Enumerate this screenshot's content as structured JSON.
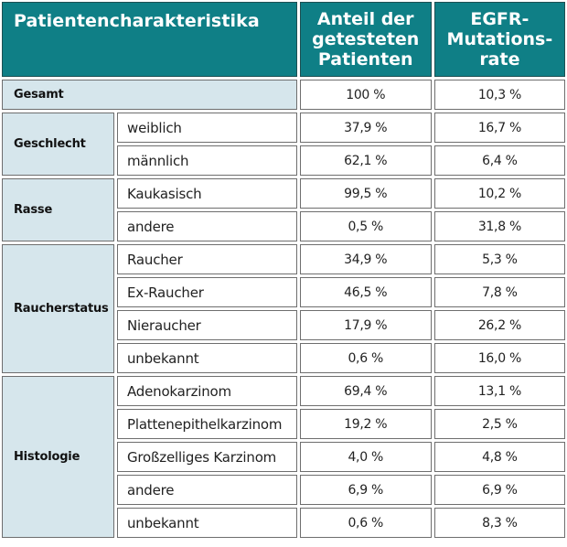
{
  "header": {
    "characteristic": "Patientencharakteristika",
    "share_tested": [
      "Anteil der",
      "getesteten",
      "Patienten"
    ],
    "egfr_rate": [
      "EGFR-",
      "Mutations-",
      "rate"
    ]
  },
  "total": {
    "label": "Gesamt",
    "share": "100 %",
    "rate": "10,3 %"
  },
  "groups": [
    {
      "label": "Geschlecht",
      "rows": [
        {
          "label": "weiblich",
          "share": "37,9 %",
          "rate": "16,7 %"
        },
        {
          "label": "männlich",
          "share": "62,1 %",
          "rate": "6,4 %"
        }
      ]
    },
    {
      "label": "Rasse",
      "rows": [
        {
          "label": "Kaukasisch",
          "share": "99,5 %",
          "rate": "10,2 %"
        },
        {
          "label": "andere",
          "share": "0,5 %",
          "rate": "31,8 %"
        }
      ]
    },
    {
      "label": "Raucherstatus",
      "rows": [
        {
          "label": "Raucher",
          "share": "34,9 %",
          "rate": "5,3 %"
        },
        {
          "label": "Ex-Raucher",
          "share": "46,5 %",
          "rate": "7,8 %"
        },
        {
          "label": "Nieraucher",
          "share": "17,9 %",
          "rate": "26,2 %"
        },
        {
          "label": "unbekannt",
          "share": "0,6 %",
          "rate": "16,0 %"
        }
      ]
    },
    {
      "label": "Histologie",
      "rows": [
        {
          "label": "Adenokarzinom",
          "share": "69,4 %",
          "rate": "13,1 %"
        },
        {
          "label": "Plattenepithelkarzinom",
          "share": "19,2 %",
          "rate": "2,5 %"
        },
        {
          "label": "Großzelliges Karzinom",
          "share": "4,0 %",
          "rate": "4,8 %"
        },
        {
          "label": "andere",
          "share": "6,9 %",
          "rate": "6,9 %"
        },
        {
          "label": "unbekannt",
          "share": "0,6 %",
          "rate": "8,3 %"
        }
      ]
    }
  ]
}
